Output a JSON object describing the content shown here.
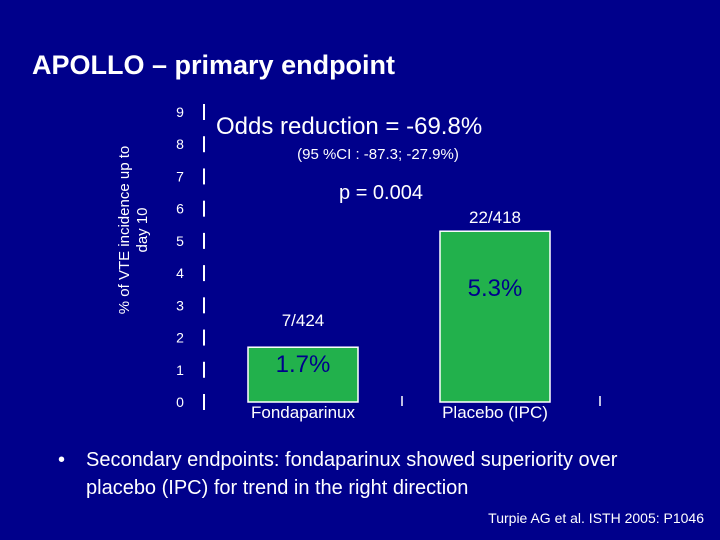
{
  "slide": {
    "title": "APOLLO – primary endpoint",
    "bullet_marker": "•",
    "bullet_text": "Secondary endpoints: fondaparinux showed superiority over placebo (IPC) for trend in the right direction",
    "citation": "Turpie AG et al. ISTH 2005: P1046"
  },
  "colors": {
    "background": "#00008b",
    "text": "#ffffff",
    "bar": "#22b14c",
    "bar_outline": "#ffffff"
  },
  "chart_data": {
    "type": "bar",
    "ylabel": "% of VTE incidence up to day 10",
    "ylim": [
      0,
      9
    ],
    "yticks": [
      "0",
      "1",
      "2",
      "3",
      "4",
      "5",
      "6",
      "7",
      "8",
      "9"
    ],
    "categories": [
      "Fondaparinux",
      "Placebo (IPC)"
    ],
    "values": [
      1.7,
      5.3
    ],
    "value_labels": [
      "1.7%",
      "5.3%"
    ],
    "count_labels": [
      "7/424",
      "22/418"
    ],
    "grid": false,
    "annotations": {
      "odds_reduction": "Odds reduction =  -69.8%",
      "ci": "(95 %CI : -87.3; -27.9%)",
      "p_value": "p = 0.004"
    }
  }
}
